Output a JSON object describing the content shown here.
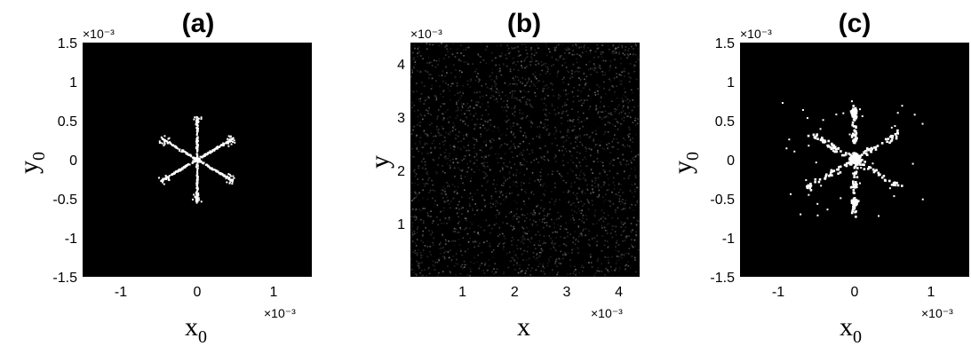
{
  "chart_data": [
    {
      "type": "heatmap",
      "title": "(a)",
      "xlabel": "x",
      "xlabel_sub": "0",
      "ylabel": "y",
      "ylabel_sub": "0",
      "x_exponent": "×10⁻³",
      "y_exponent": "×10⁻³",
      "xlim": [
        -1.5,
        1.5
      ],
      "ylim": [
        -1.5,
        1.5
      ],
      "xticks": [
        -1,
        0,
        1
      ],
      "xtick_labels": [
        "-1",
        "0",
        "1"
      ],
      "yticks": [
        1.5,
        1,
        0.5,
        0,
        -0.5,
        -1,
        -1.5
      ],
      "ytick_labels": [
        "1.5",
        "1",
        "0.5",
        "0",
        "-0.5",
        "-1",
        "-1.5"
      ],
      "colormap": "gray",
      "background": "#000000",
      "pattern": "six-armed star (snowflake) of bright points centered at origin, arm length ~0.55e-3",
      "star_arm_length": 0.55
    },
    {
      "type": "heatmap",
      "title": "(b)",
      "xlabel": "x",
      "ylabel": "y",
      "x_exponent": "×10⁻³",
      "y_exponent": "×10⁻³",
      "xlim": [
        0,
        4.4
      ],
      "ylim": [
        0,
        4.4
      ],
      "xticks": [
        1,
        2,
        3,
        4
      ],
      "xtick_labels": [
        "1",
        "2",
        "3",
        "4"
      ],
      "yticks": [
        4,
        3,
        2,
        1
      ],
      "ytick_labels": [
        "4",
        "3",
        "2",
        "1"
      ],
      "colormap": "gray",
      "background": "#000000",
      "pattern": "dim speckle noise across whole field"
    },
    {
      "type": "heatmap",
      "title": "(c)",
      "xlabel": "x",
      "xlabel_sub": "0",
      "ylabel": "y",
      "ylabel_sub": "0",
      "x_exponent": "×10⁻³",
      "y_exponent": "×10⁻³",
      "xlim": [
        -1.5,
        1.5
      ],
      "ylim": [
        -1.5,
        1.5
      ],
      "xticks": [
        -1,
        0,
        1
      ],
      "xtick_labels": [
        "-1",
        "0",
        "1"
      ],
      "yticks": [
        1.5,
        1,
        0.5,
        0,
        -0.5,
        -1,
        -1.5
      ],
      "ytick_labels": [
        "1.5",
        "1",
        "0.5",
        "0",
        "-0.5",
        "-1",
        "-1.5"
      ],
      "colormap": "gray",
      "background": "#000000",
      "pattern": "noisy reconstruction of six-armed star with bright center blob and scattered points",
      "star_arm_length": 0.7
    }
  ]
}
